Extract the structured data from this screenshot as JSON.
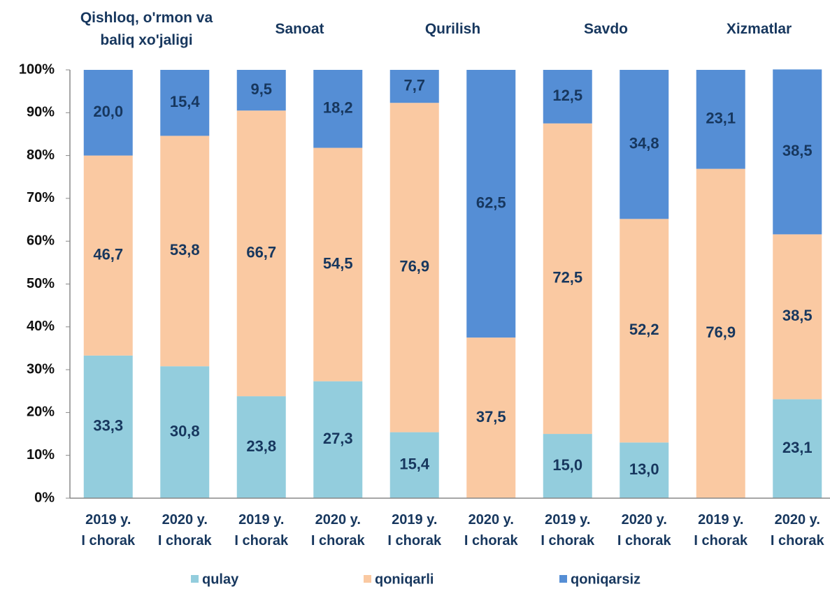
{
  "chart_data": {
    "type": "stacked_bar",
    "groups": [
      "Qishloq, o'rmon va baliq xo'jaligi",
      "Sanoat",
      "Qurilish",
      "Savdo",
      "Xizmatlar"
    ],
    "categories": [
      "2019 y. I chorak",
      "2020 y. I chorak",
      "2019 y. I chorak",
      "2020 y. I chorak",
      "2019 y. I chorak",
      "2020 y. I chorak",
      "2019 y. I chorak",
      "2020 y. I chorak",
      "2019 y. I chorak",
      "2020 y. I chorak"
    ],
    "series": [
      {
        "name": "qulay",
        "color": "#93cddd",
        "values": [
          33.3,
          30.8,
          23.8,
          27.3,
          15.4,
          null,
          15.0,
          13.0,
          null,
          23.1
        ],
        "value_labels": [
          "33,3",
          "30,8",
          "23,8",
          "27,3",
          "15,4",
          null,
          "15,0",
          "13,0",
          null,
          "23,1"
        ]
      },
      {
        "name": "qoniqarli",
        "color": "#fac9a2",
        "values": [
          46.7,
          53.8,
          66.7,
          54.5,
          76.9,
          37.5,
          72.5,
          52.2,
          76.9,
          38.5
        ],
        "value_labels": [
          "46,7",
          "53,8",
          "66,7",
          "54,5",
          "76,9",
          "37,5",
          "72,5",
          "52,2",
          "76,9",
          "38,5"
        ]
      },
      {
        "name": "qoniqarsiz",
        "color": "#558ed5",
        "values": [
          20.0,
          15.4,
          9.5,
          18.2,
          7.7,
          62.5,
          12.5,
          34.8,
          23.1,
          38.5
        ],
        "value_labels": [
          "20,0",
          "15,4",
          "9,5",
          "18,2",
          "7,7",
          "62,5",
          "12,5",
          "34,8",
          "23,1",
          "38,5"
        ]
      }
    ],
    "ylim": [
      0,
      100
    ],
    "yticks": [
      {
        "value": 0,
        "label": "0%"
      },
      {
        "value": 10,
        "label": "10%"
      },
      {
        "value": 20,
        "label": "20%"
      },
      {
        "value": 30,
        "label": "30%"
      },
      {
        "value": 40,
        "label": "40%"
      },
      {
        "value": 50,
        "label": "50%"
      },
      {
        "value": 60,
        "label": "60%"
      },
      {
        "value": 70,
        "label": "70%"
      },
      {
        "value": 80,
        "label": "80%"
      },
      {
        "value": 90,
        "label": "90%"
      },
      {
        "value": 100,
        "label": "100%"
      }
    ],
    "legend": "bottom"
  }
}
